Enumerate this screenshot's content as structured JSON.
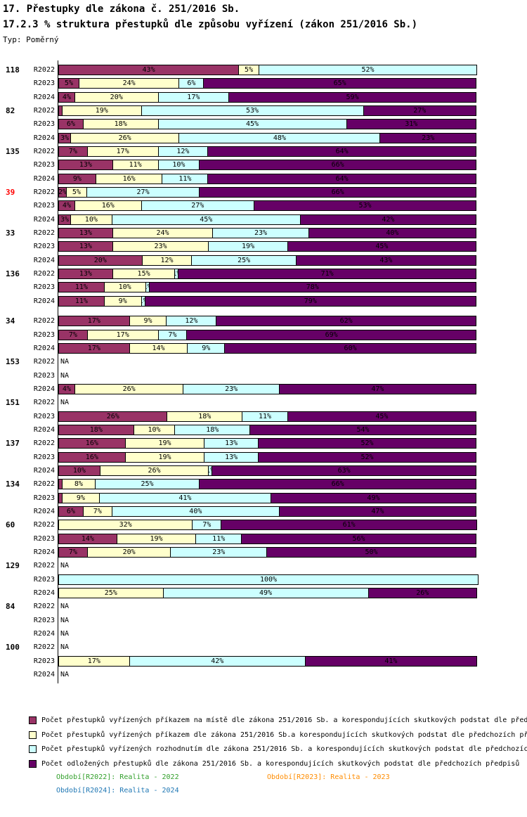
{
  "title": "17. Přestupky dle zákona č. 251/2016 Sb.",
  "subtitle": "17.2.3 % struktura přestupků dle způsobu vyřízení (zákon 251/2016 Sb.)",
  "type_label": "Typ: Poměrný",
  "na_label": "NA",
  "colors": {
    "series1": "#993366",
    "series2": "#FFFFCC",
    "series3": "#CCFFFF",
    "series4": "#660066",
    "group_label": "#000000",
    "group_label_highlight": "#FF0000",
    "axis": "#000000"
  },
  "chart_data": {
    "type": "bar",
    "stacked": true,
    "orientation": "horizontal",
    "unit": "%",
    "xlim": [
      0,
      100
    ],
    "periods": [
      "R2022",
      "R2023",
      "R2024"
    ],
    "series": [
      {
        "key": "s1",
        "color": "#993366",
        "name": "Počet přestupků vyřízených příkazem na místě dle zákona 251/2016 Sb. a korespondujících skutkových podstat dle před"
      },
      {
        "key": "s2",
        "color": "#FFFFCC",
        "name": "Počet přestupků vyřízených příkazem dle zákona 251/2016 Sb.a korespondujících skutkových podstat dle předchozích př"
      },
      {
        "key": "s3",
        "color": "#CCFFFF",
        "name": "Počet přestupků vyřízených rozhodnutím dle zákona 251/2016 Sb. a korespondujících skutkových podstat dle předchozíc"
      },
      {
        "key": "s4",
        "color": "#660066",
        "name": "Počet odložených přestupků dle zákona 251/2016 Sb. a korespondujících skutkových podstat dle předchozích předpisů"
      }
    ],
    "groups": [
      {
        "label": "118",
        "highlight": false,
        "rows": [
          {
            "period": "R2022",
            "values": [
              43,
              5,
              52,
              0
            ]
          },
          {
            "period": "R2023",
            "values": [
              5,
              24,
              6,
              65
            ]
          },
          {
            "period": "R2024",
            "values": [
              4,
              20,
              17,
              59
            ]
          }
        ]
      },
      {
        "label": "82",
        "highlight": false,
        "rows": [
          {
            "period": "R2022",
            "values": [
              1,
              19,
              53,
              27
            ],
            "labels": [
              "",
              "19%",
              "53%",
              "27%"
            ]
          },
          {
            "period": "R2023",
            "values": [
              6,
              18,
              45,
              31
            ]
          },
          {
            "period": "R2024",
            "values": [
              3,
              26,
              48,
              23
            ]
          }
        ]
      },
      {
        "label": "135",
        "highlight": false,
        "rows": [
          {
            "period": "R2022",
            "values": [
              7,
              17,
              12,
              64
            ]
          },
          {
            "period": "R2023",
            "values": [
              13,
              11,
              10,
              66
            ]
          },
          {
            "period": "R2024",
            "values": [
              9,
              16,
              11,
              64
            ]
          }
        ]
      },
      {
        "label": "39",
        "highlight": true,
        "rows": [
          {
            "period": "R2022",
            "values": [
              2,
              5,
              27,
              66
            ]
          },
          {
            "period": "R2023",
            "values": [
              4,
              16,
              27,
              53
            ]
          },
          {
            "period": "R2024",
            "values": [
              3,
              10,
              45,
              42
            ]
          }
        ]
      },
      {
        "label": "33",
        "highlight": false,
        "rows": [
          {
            "period": "R2022",
            "values": [
              13,
              24,
              23,
              40
            ]
          },
          {
            "period": "R2023",
            "values": [
              13,
              23,
              19,
              45
            ]
          },
          {
            "period": "R2024",
            "values": [
              20,
              12,
              25,
              43
            ]
          }
        ]
      },
      {
        "label": "136",
        "highlight": false,
        "rows": [
          {
            "period": "R2022",
            "values": [
              13,
              15,
              1,
              71
            ]
          },
          {
            "period": "R2023",
            "values": [
              11,
              10,
              1,
              78
            ]
          },
          {
            "period": "R2024",
            "values": [
              11,
              9,
              1,
              79
            ]
          }
        ]
      },
      {
        "label": "34",
        "highlight": false,
        "rows": [
          {
            "period": "R2022",
            "values": [
              17,
              9,
              12,
              62
            ]
          },
          {
            "period": "R2023",
            "values": [
              7,
              17,
              7,
              69
            ]
          },
          {
            "period": "R2024",
            "values": [
              17,
              14,
              9,
              60
            ]
          }
        ]
      },
      {
        "label": "153",
        "highlight": false,
        "rows": [
          {
            "period": "R2022",
            "values": null
          },
          {
            "period": "R2023",
            "values": null
          },
          {
            "period": "R2024",
            "values": [
              4,
              26,
              23,
              47
            ]
          }
        ]
      },
      {
        "label": "151",
        "highlight": false,
        "rows": [
          {
            "period": "R2022",
            "values": null
          },
          {
            "period": "R2023",
            "values": [
              26,
              18,
              11,
              45
            ]
          },
          {
            "period": "R2024",
            "values": [
              18,
              10,
              18,
              54
            ]
          }
        ]
      },
      {
        "label": "137",
        "highlight": false,
        "rows": [
          {
            "period": "R2022",
            "values": [
              16,
              19,
              13,
              52
            ]
          },
          {
            "period": "R2023",
            "values": [
              16,
              19,
              13,
              52
            ]
          },
          {
            "period": "R2024",
            "values": [
              10,
              26,
              1,
              63
            ]
          }
        ]
      },
      {
        "label": "134",
        "highlight": false,
        "rows": [
          {
            "period": "R2022",
            "values": [
              1,
              8,
              25,
              66
            ],
            "labels": [
              "",
              "8%",
              "25%",
              "66%"
            ]
          },
          {
            "period": "R2023",
            "values": [
              1,
              9,
              41,
              49
            ],
            "labels": [
              "",
              "9%",
              "41%",
              "49%"
            ]
          },
          {
            "period": "R2024",
            "values": [
              6,
              7,
              40,
              47
            ]
          }
        ]
      },
      {
        "label": "60",
        "highlight": false,
        "rows": [
          {
            "period": "R2022",
            "values": [
              0,
              32,
              7,
              61
            ]
          },
          {
            "period": "R2023",
            "values": [
              14,
              19,
              11,
              56
            ]
          },
          {
            "period": "R2024",
            "values": [
              7,
              20,
              23,
              50
            ]
          }
        ]
      },
      {
        "label": "129",
        "highlight": false,
        "rows": [
          {
            "period": "R2022",
            "values": null
          },
          {
            "period": "R2023",
            "values": [
              0,
              0,
              100,
              0
            ]
          },
          {
            "period": "R2024",
            "values": [
              0,
              25,
              49,
              26
            ]
          }
        ]
      },
      {
        "label": "84",
        "highlight": false,
        "rows": [
          {
            "period": "R2022",
            "values": null
          },
          {
            "period": "R2023",
            "values": null
          },
          {
            "period": "R2024",
            "values": null
          }
        ]
      },
      {
        "label": "100",
        "highlight": false,
        "rows": [
          {
            "period": "R2022",
            "values": null
          },
          {
            "period": "R2023",
            "values": [
              0,
              17,
              42,
              41
            ]
          },
          {
            "period": "R2024",
            "values": null
          }
        ]
      }
    ]
  },
  "footer_notes": [
    {
      "text": "Období[R2022]: Realita - 2022",
      "color": "#33A02C"
    },
    {
      "text": "Období[R2023]: Realita - 2023",
      "color": "#FF8C00"
    },
    {
      "text": "Období[R2024]: Realita - 2024",
      "color": "#1F77B4"
    }
  ]
}
